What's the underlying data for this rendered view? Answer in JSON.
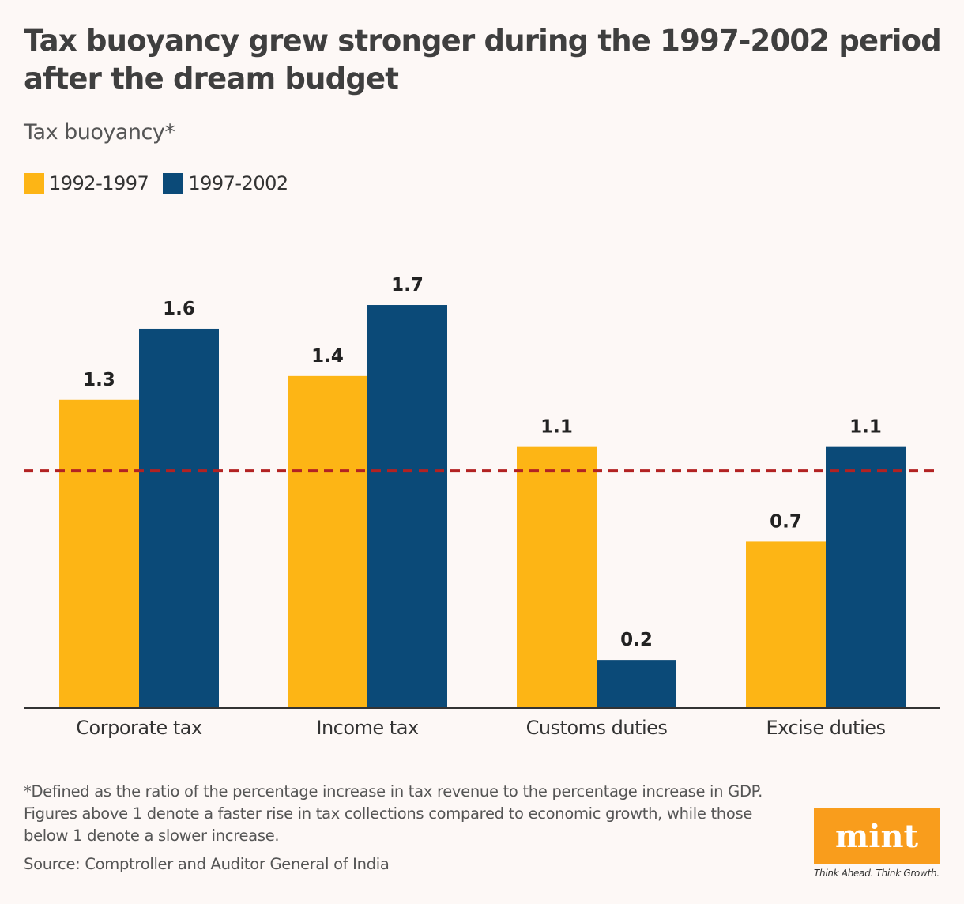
{
  "chart_data": {
    "type": "bar",
    "title": "Tax buoyancy grew stronger during the 1997-2002 period after the dream budget",
    "subtitle": "Tax buoyancy*",
    "categories": [
      "Corporate tax",
      "Income tax",
      "Customs duties",
      "Excise duties"
    ],
    "series": [
      {
        "name": "1992-1997",
        "values": [
          1.3,
          1.4,
          1.1,
          0.7
        ],
        "color": "#fdb515"
      },
      {
        "name": "1997-2002",
        "values": [
          1.6,
          1.7,
          0.2,
          1.1
        ],
        "color": "#0b4a78"
      }
    ],
    "reference_line": {
      "value": 1,
      "color": "#b22222",
      "style": "dashed"
    },
    "ylim": [
      0,
      1.7
    ],
    "grid": false,
    "legend_placement": "top-left",
    "footnote": "*Defined as the ratio of the percentage increase in tax revenue to the percentage increase in GDP. Figures above 1 denote a faster rise in tax collections compared to economic growth, while those below 1 denote a slower increase.",
    "source": "Source: Comptroller and Auditor General of India"
  },
  "logo": {
    "name": "mint",
    "tagline": "Think Ahead. Think Growth."
  }
}
